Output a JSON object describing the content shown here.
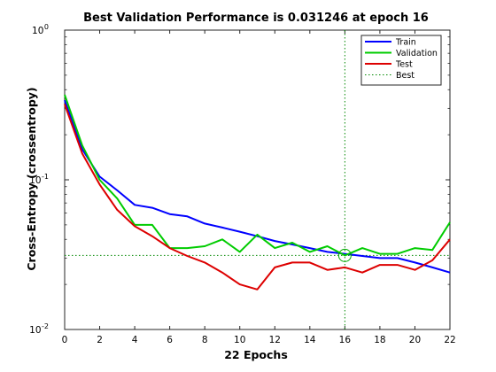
{
  "chart_data": {
    "type": "line",
    "title": "Best Validation Performance is 0.031246 at epoch 16",
    "xlabel": "22 Epochs",
    "ylabel": "Cross-Entropy  (crossentropy)",
    "xlim": [
      0,
      22
    ],
    "ylim": [
      0.01,
      1
    ],
    "yscale": "log",
    "x_ticks": [
      "0",
      "2",
      "4",
      "6",
      "8",
      "10",
      "12",
      "14",
      "16",
      "18",
      "20",
      "22"
    ],
    "y_ticks": [
      {
        "value": 0.01,
        "base": "10",
        "exp": "-2"
      },
      {
        "value": 0.1,
        "base": "10",
        "exp": "-1"
      },
      {
        "value": 1,
        "base": "10",
        "exp": "0"
      }
    ],
    "legend_position": "top-right",
    "x": [
      0,
      1,
      2,
      3,
      4,
      5,
      6,
      7,
      8,
      9,
      10,
      11,
      12,
      13,
      14,
      15,
      16,
      17,
      18,
      19,
      20,
      21,
      22
    ],
    "series": [
      {
        "name": "Train",
        "color": "#0000ff",
        "values": [
          0.34,
          0.16,
          0.105,
          0.085,
          0.068,
          0.065,
          0.059,
          0.057,
          0.051,
          0.048,
          0.045,
          0.042,
          0.039,
          0.037,
          0.035,
          0.033,
          0.032,
          0.031,
          0.03,
          0.03,
          0.028,
          0.026,
          0.024
        ]
      },
      {
        "name": "Validation",
        "color": "#00cc00",
        "values": [
          0.37,
          0.17,
          0.1,
          0.075,
          0.05,
          0.05,
          0.035,
          0.035,
          0.036,
          0.04,
          0.033,
          0.043,
          0.035,
          0.038,
          0.033,
          0.036,
          0.031246,
          0.035,
          0.032,
          0.032,
          0.035,
          0.034,
          0.052
        ]
      },
      {
        "name": "Test",
        "color": "#dd0000",
        "values": [
          0.32,
          0.15,
          0.093,
          0.063,
          0.049,
          0.042,
          0.035,
          0.031,
          0.028,
          0.024,
          0.02,
          0.0185,
          0.026,
          0.028,
          0.028,
          0.025,
          0.026,
          0.024,
          0.027,
          0.027,
          0.025,
          0.029,
          0.04
        ]
      }
    ],
    "best": {
      "name": "Best",
      "epoch": 16,
      "value": 0.031246,
      "color": "#008800"
    }
  }
}
